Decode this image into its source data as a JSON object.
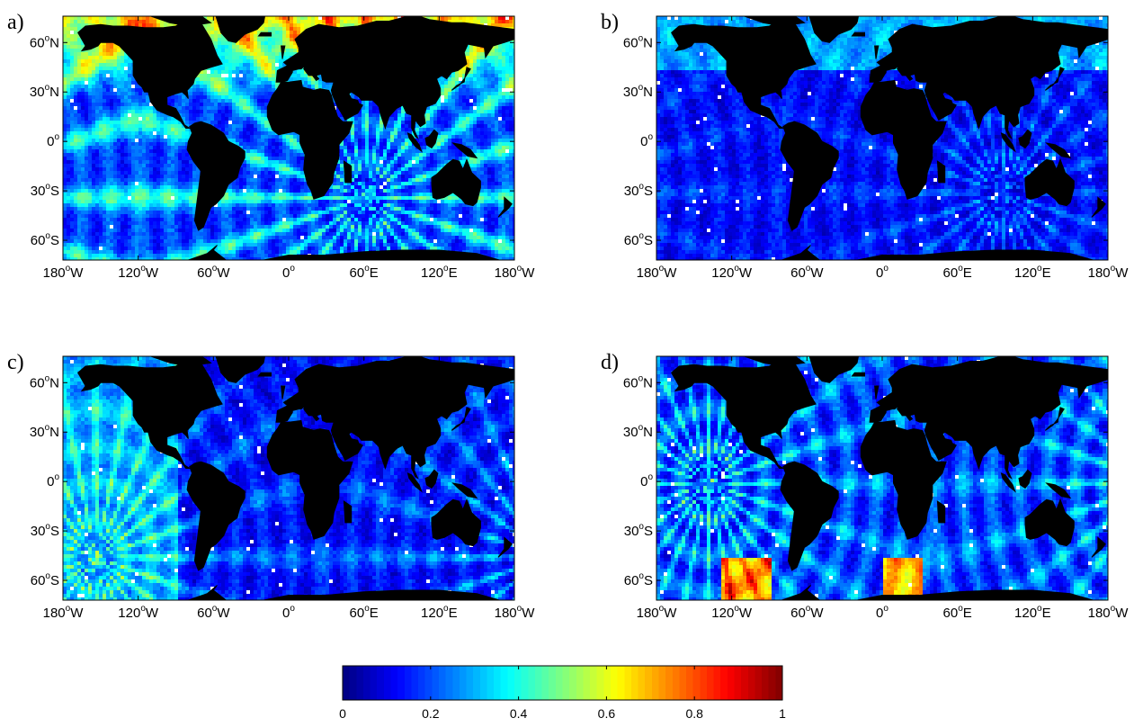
{
  "figure": {
    "panels": [
      {
        "label": "a)",
        "source": [
          60,
          -33
        ]
      },
      {
        "label": "b)",
        "source": [
          95,
          -30
        ]
      },
      {
        "label": "c)",
        "source": [
          -155,
          -45
        ]
      },
      {
        "label": "d)",
        "source": [
          -140,
          0
        ]
      }
    ],
    "x_ticks": [
      {
        "lon": -180,
        "label": "180",
        "deg": "o",
        "hemi": "W"
      },
      {
        "lon": -120,
        "label": "120",
        "deg": "o",
        "hemi": "W"
      },
      {
        "lon": -60,
        "label": "60",
        "deg": "o",
        "hemi": "W"
      },
      {
        "lon": 0,
        "label": "0",
        "deg": "o",
        "hemi": ""
      },
      {
        "lon": 60,
        "label": "60",
        "deg": "o",
        "hemi": "E"
      },
      {
        "lon": 120,
        "label": "120",
        "deg": "o",
        "hemi": "E"
      },
      {
        "lon": 180,
        "label": "180",
        "deg": "o",
        "hemi": "W"
      }
    ],
    "y_ticks": [
      {
        "lat": 60,
        "label": "60",
        "deg": "o",
        "hemi": "N"
      },
      {
        "lat": 30,
        "label": "30",
        "deg": "o",
        "hemi": "N"
      },
      {
        "lat": 0,
        "label": "0",
        "deg": "o",
        "hemi": ""
      },
      {
        "lat": -30,
        "label": "30",
        "deg": "o",
        "hemi": "S"
      },
      {
        "lat": -60,
        "label": "60",
        "deg": "o",
        "hemi": "S"
      }
    ],
    "colorbar": {
      "ticks": [
        "0",
        "0.2",
        "0.4",
        "0.6",
        "0.8",
        "1"
      ],
      "min": 0,
      "max": 1,
      "colormap": "jet"
    },
    "land_color": "#000000"
  }
}
